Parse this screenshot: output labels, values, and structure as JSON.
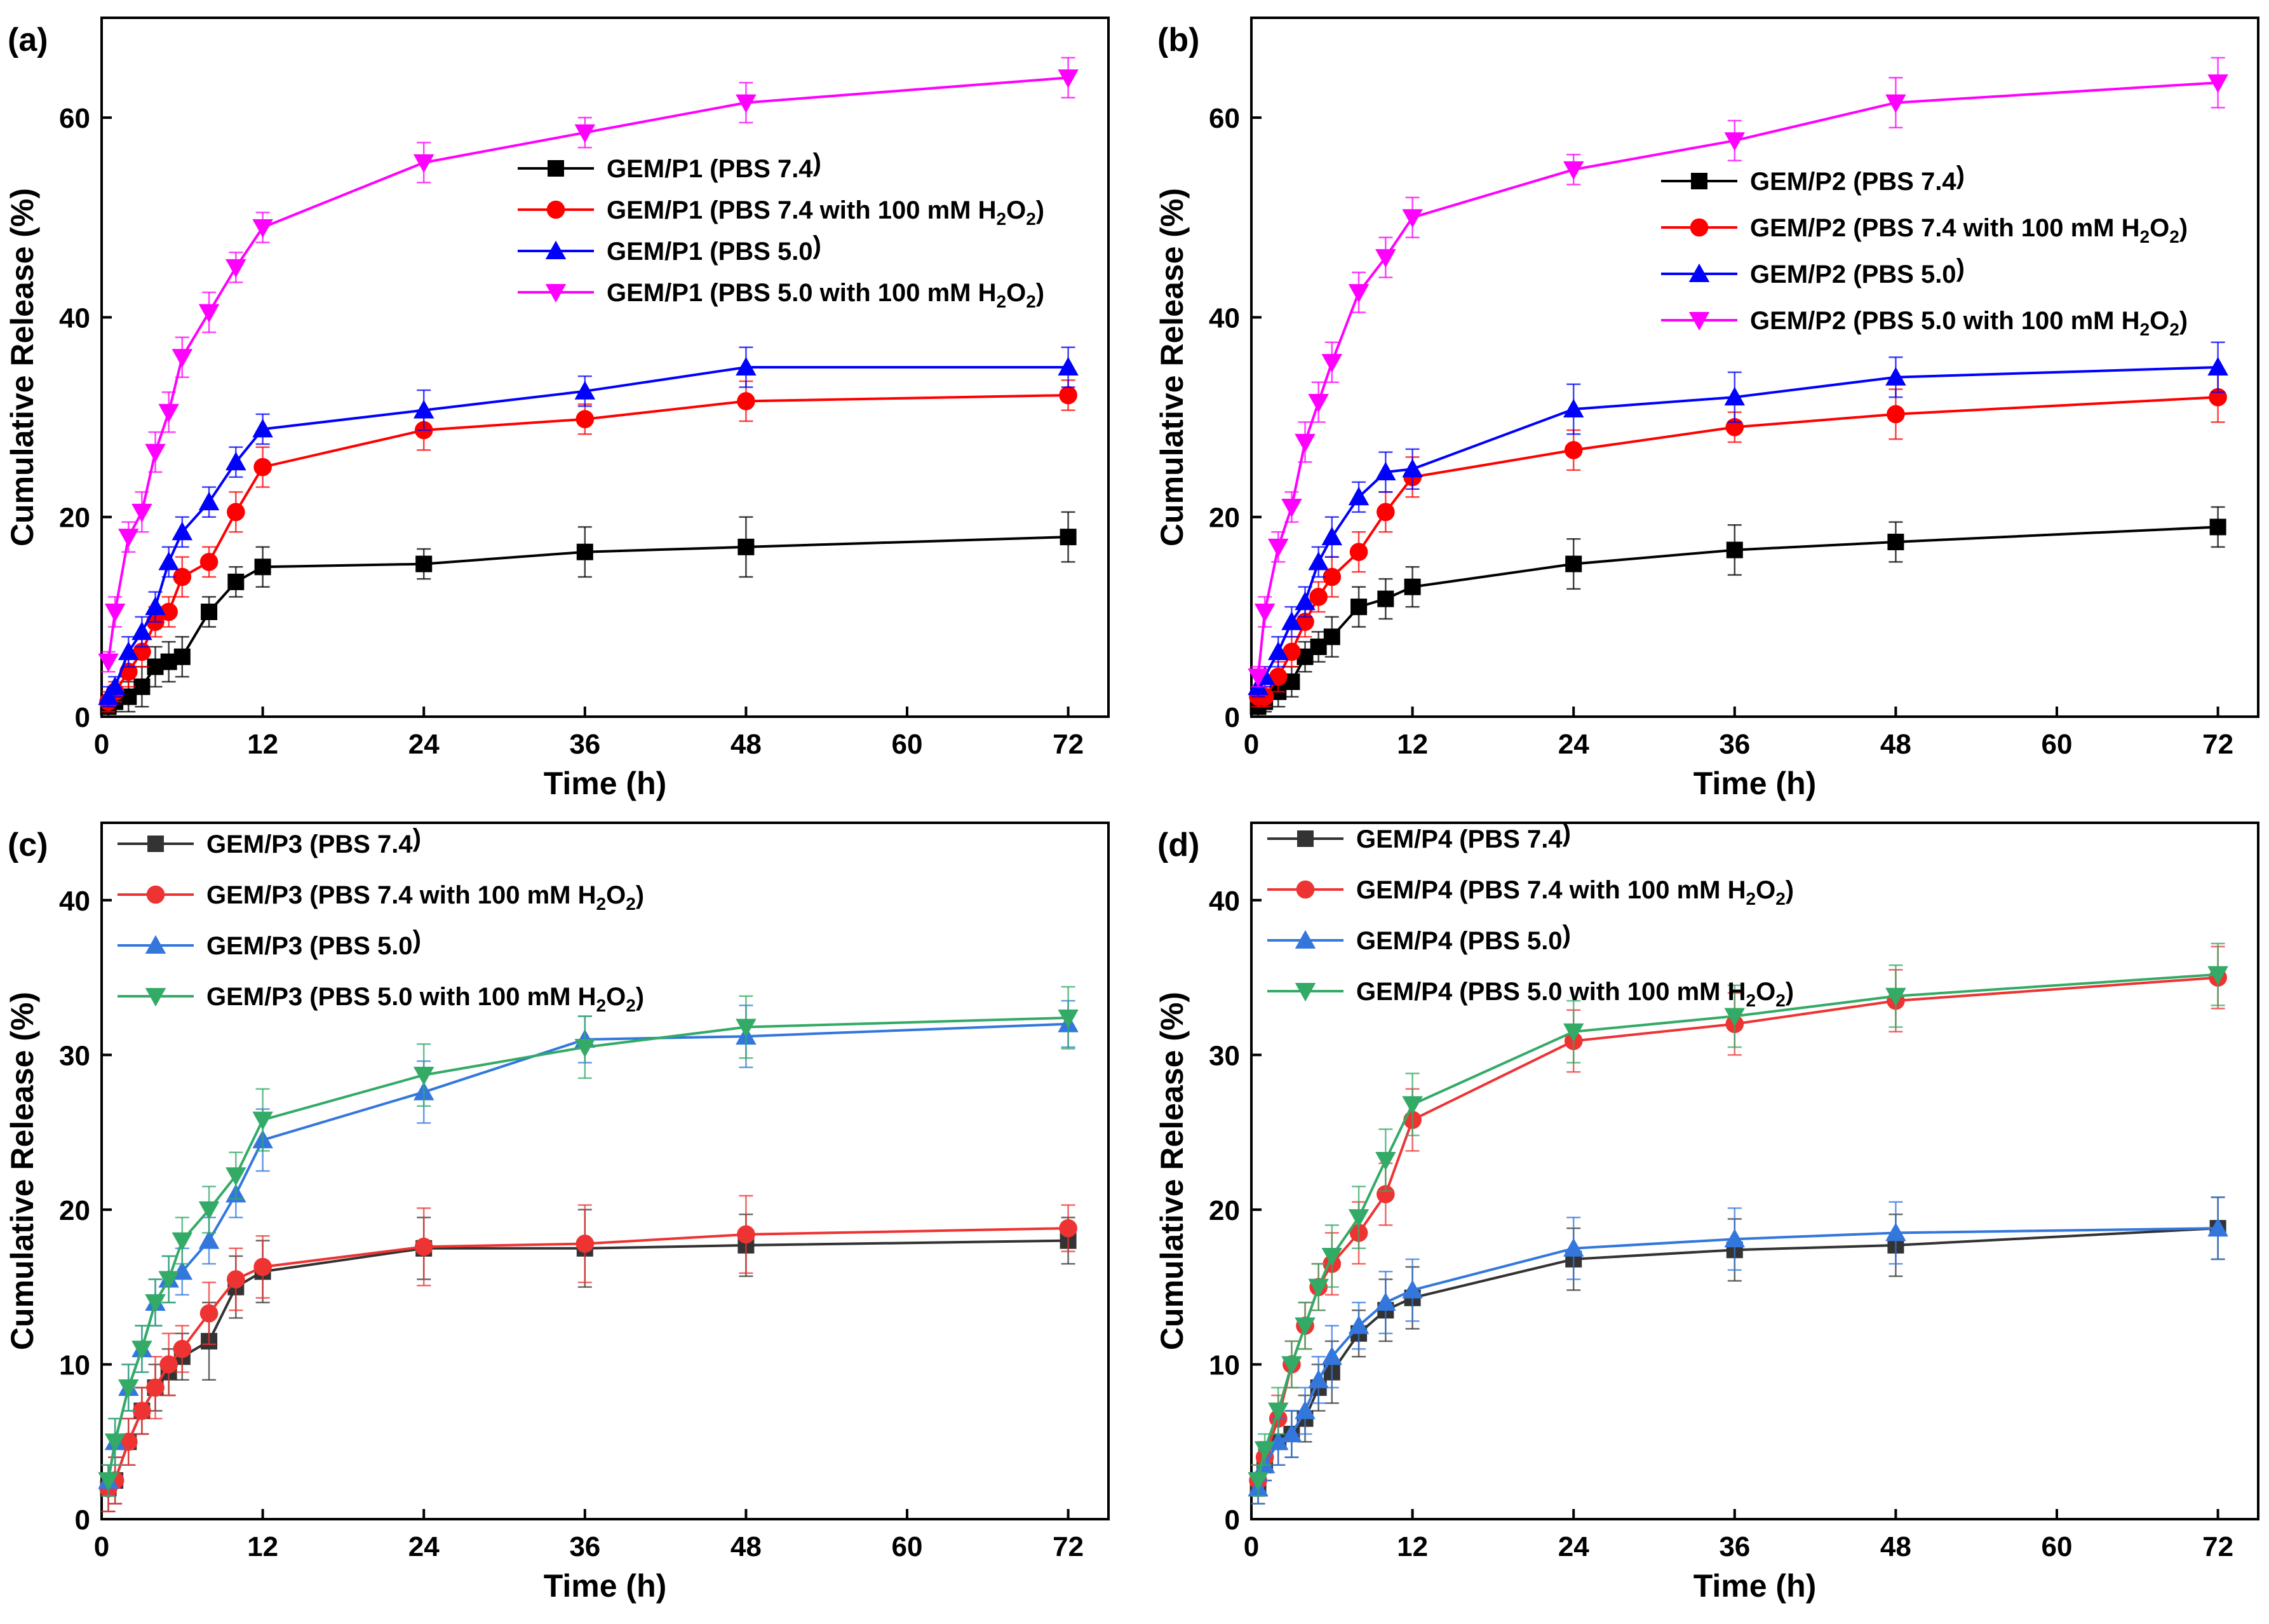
{
  "chart_data": [
    {
      "type": "line",
      "panel_label": "(a)",
      "xlabel": "Time (h)",
      "ylabel": "Cumulative Release (%)",
      "xlim": [
        0,
        75
      ],
      "ylim": [
        0,
        70
      ],
      "xticks": [
        0,
        12,
        24,
        36,
        48,
        60,
        72
      ],
      "yticks": [
        0,
        20,
        40,
        60
      ],
      "legend_position": "center-right",
      "x": [
        0.5,
        1,
        2,
        3,
        4,
        5,
        6,
        8,
        10,
        12,
        24,
        36,
        48,
        72
      ],
      "series": [
        {
          "name": "GEM/P1 (PBS 7.4)",
          "label_main": "GEM/P1 (PBS 7.4",
          "label_sub1": "",
          "label_mid": "",
          "label_sub2": "",
          "label_end": ")",
          "color": "#000000",
          "marker": "square",
          "values": [
            1.0,
            1.5,
            2.0,
            3.0,
            5.0,
            5.5,
            6.0,
            10.5,
            13.5,
            15.0,
            15.3,
            16.5,
            17.0,
            18.0
          ],
          "errors": [
            1.0,
            1.0,
            1.5,
            2.0,
            2.0,
            2.0,
            2.0,
            1.5,
            1.5,
            2.0,
            1.5,
            2.5,
            3.0,
            2.5
          ]
        },
        {
          "name": "GEM/P1 (PBS 7.4 with 100 mM H2O2)",
          "label_main": "GEM/P1 (PBS 7.4 with 100 mM H",
          "label_sub1": "2",
          "label_mid": "O",
          "label_sub2": "2",
          "label_end": ")",
          "color": "#ff0000",
          "marker": "circle",
          "values": [
            1.5,
            2.5,
            4.5,
            6.5,
            9.5,
            10.5,
            14.0,
            15.5,
            20.5,
            25.0,
            28.7,
            29.8,
            31.6,
            32.2
          ],
          "errors": [
            1.0,
            1.0,
            1.5,
            1.5,
            1.5,
            1.5,
            2.0,
            1.5,
            2.0,
            2.0,
            2.0,
            1.5,
            2.0,
            1.5
          ]
        },
        {
          "name": "GEM/P1 (PBS 5.0)",
          "label_main": "GEM/P1 (PBS 5.0",
          "label_sub1": "",
          "label_mid": "",
          "label_sub2": "",
          "label_end": ")",
          "color": "#0000ff",
          "marker": "triangle-up",
          "values": [
            2.0,
            3.0,
            6.5,
            8.5,
            11.0,
            15.5,
            18.5,
            21.5,
            25.5,
            28.8,
            30.7,
            32.6,
            35.0,
            35.0
          ],
          "errors": [
            1.0,
            1.0,
            1.5,
            1.5,
            1.5,
            1.5,
            1.5,
            1.5,
            1.5,
            1.5,
            2.0,
            1.5,
            2.0,
            2.0
          ]
        },
        {
          "name": "GEM/P1 (PBS 5.0 with 100 mM H2O2)",
          "label_main": "GEM/P1 (PBS 5.0 with 100 mM H",
          "label_sub1": "2",
          "label_mid": "O",
          "label_sub2": "2",
          "label_end": ")",
          "color": "#ff00ff",
          "marker": "triangle-down",
          "values": [
            5.5,
            10.5,
            18.0,
            20.5,
            26.5,
            30.5,
            36.0,
            40.5,
            45.0,
            49.0,
            55.5,
            58.5,
            61.5,
            64.0
          ],
          "errors": [
            1.0,
            1.5,
            1.5,
            2.0,
            2.0,
            2.0,
            2.0,
            2.0,
            1.5,
            1.5,
            2.0,
            1.5,
            2.0,
            2.0
          ]
        }
      ]
    },
    {
      "type": "line",
      "panel_label": "(b)",
      "xlabel": "Time (h)",
      "ylabel": "Cumulative Release (%)",
      "xlim": [
        0,
        75
      ],
      "ylim": [
        0,
        70
      ],
      "xticks": [
        0,
        12,
        24,
        36,
        48,
        60,
        72
      ],
      "yticks": [
        0,
        20,
        40,
        60
      ],
      "legend_position": "center-right",
      "x": [
        0.5,
        1,
        2,
        3,
        4,
        5,
        6,
        8,
        10,
        12,
        24,
        36,
        48,
        72
      ],
      "series": [
        {
          "name": "GEM/P2 (PBS 7.4)",
          "label_main": "GEM/P2 (PBS 7.4",
          "label_sub1": "",
          "label_mid": "",
          "label_sub2": "",
          "label_end": ")",
          "color": "#000000",
          "marker": "square",
          "values": [
            1.0,
            1.5,
            2.5,
            3.5,
            6.0,
            7.0,
            8.0,
            11.0,
            11.8,
            13.0,
            15.3,
            16.7,
            17.5,
            19.0
          ],
          "errors": [
            1.0,
            1.0,
            1.5,
            1.5,
            1.5,
            1.5,
            2.0,
            2.0,
            2.0,
            2.0,
            2.5,
            2.5,
            2.0,
            2.0
          ]
        },
        {
          "name": "GEM/P2 (PBS 7.4 with 100 mM H2O2)",
          "label_main": "GEM/P2 (PBS 7.4 with 100 mM H",
          "label_sub1": "2",
          "label_mid": "O",
          "label_sub2": "2",
          "label_end": ")",
          "color": "#ff0000",
          "marker": "circle",
          "values": [
            2.0,
            2.0,
            4.0,
            6.5,
            9.5,
            12.0,
            14.0,
            16.5,
            20.5,
            24.0,
            26.7,
            29.0,
            30.3,
            32.0
          ],
          "errors": [
            1.0,
            1.0,
            1.5,
            1.5,
            1.5,
            1.5,
            2.0,
            2.0,
            2.0,
            2.0,
            2.0,
            1.5,
            2.5,
            2.5
          ]
        },
        {
          "name": "GEM/P2 (PBS 5.0)",
          "label_main": "GEM/P2 (PBS 5.0",
          "label_sub1": "",
          "label_mid": "",
          "label_sub2": "",
          "label_end": ")",
          "color": "#0000ff",
          "marker": "triangle-up",
          "values": [
            3.0,
            4.0,
            6.5,
            9.5,
            11.5,
            15.5,
            18.0,
            22.0,
            24.5,
            24.8,
            30.8,
            32.0,
            34.0,
            35.0
          ],
          "errors": [
            1.0,
            1.0,
            1.5,
            1.5,
            1.5,
            1.5,
            2.0,
            1.5,
            2.0,
            2.0,
            2.5,
            2.5,
            2.0,
            2.5
          ]
        },
        {
          "name": "GEM/P2 (PBS 5.0 with 100 mM H2O2)",
          "label_main": "GEM/P2 (PBS 5.0 with 100 mM H",
          "label_sub1": "2",
          "label_mid": "O",
          "label_sub2": "2",
          "label_end": ")",
          "color": "#ff00ff",
          "marker": "triangle-down",
          "values": [
            4.0,
            10.5,
            17.0,
            21.0,
            27.5,
            31.5,
            35.5,
            42.5,
            46.0,
            50.0,
            54.8,
            57.7,
            61.5,
            63.5
          ],
          "errors": [
            1.0,
            1.5,
            1.5,
            1.5,
            2.0,
            2.0,
            2.0,
            2.0,
            2.0,
            2.0,
            1.5,
            2.0,
            2.5,
            2.5
          ]
        }
      ]
    },
    {
      "type": "line",
      "panel_label": "(c)",
      "xlabel": "Time (h)",
      "ylabel": "Cumulative Release (%)",
      "xlim": [
        0,
        75
      ],
      "ylim": [
        0,
        45
      ],
      "xticks": [
        0,
        12,
        24,
        36,
        48,
        60,
        72
      ],
      "yticks": [
        0,
        10,
        20,
        30,
        40
      ],
      "legend_position": "top-left",
      "x": [
        0.5,
        1,
        2,
        3,
        4,
        5,
        6,
        8,
        10,
        12,
        24,
        36,
        48,
        72
      ],
      "series": [
        {
          "name": "GEM/P3 (PBS 7.4)",
          "label_main": "GEM/P3 (PBS 7.4",
          "label_sub1": "",
          "label_mid": "",
          "label_sub2": "",
          "label_end": ")",
          "color": "#333333",
          "marker": "square",
          "values": [
            2.0,
            2.5,
            5.0,
            7.0,
            8.5,
            9.5,
            10.5,
            11.5,
            15.0,
            16.0,
            17.5,
            17.5,
            17.7,
            18.0
          ],
          "errors": [
            1.5,
            1.5,
            1.5,
            1.5,
            1.5,
            1.5,
            1.5,
            2.5,
            2.0,
            2.0,
            2.0,
            2.5,
            2.0,
            1.5
          ]
        },
        {
          "name": "GEM/P3 (PBS 7.4 with 100 mM H2O2)",
          "label_main": "GEM/P3 (PBS 7.4 with 100 mM H",
          "label_sub1": "2",
          "label_mid": "O",
          "label_sub2": "2",
          "label_end": ")",
          "color": "#ee3333",
          "marker": "circle",
          "values": [
            2.0,
            2.5,
            5.0,
            7.0,
            8.5,
            10.0,
            11.0,
            13.3,
            15.5,
            16.3,
            17.6,
            17.8,
            18.4,
            18.8
          ],
          "errors": [
            1.5,
            1.5,
            1.5,
            1.5,
            2.0,
            2.0,
            1.5,
            2.0,
            2.0,
            2.0,
            2.5,
            2.5,
            2.5,
            1.5
          ]
        },
        {
          "name": "GEM/P3 (PBS 5.0)",
          "label_main": "GEM/P3 (PBS 5.0",
          "label_sub1": "",
          "label_mid": "",
          "label_sub2": "",
          "label_end": ")",
          "color": "#3377dd",
          "marker": "triangle-up",
          "values": [
            2.5,
            5.0,
            8.5,
            11.0,
            14.0,
            15.5,
            16.0,
            18.0,
            21.0,
            24.5,
            27.6,
            31.0,
            31.2,
            32.0
          ],
          "errors": [
            1.0,
            1.5,
            1.5,
            1.5,
            1.5,
            1.5,
            1.5,
            1.5,
            1.5,
            2.0,
            2.0,
            1.5,
            2.0,
            1.5
          ]
        },
        {
          "name": "GEM/P3 (PBS 5.0 with 100 mM H2O2)",
          "label_main": "GEM/P3 (PBS 5.0 with 100 mM H",
          "label_sub1": "2",
          "label_mid": "O",
          "label_sub2": "2",
          "label_end": ")",
          "color": "#33aa66",
          "marker": "triangle-down",
          "values": [
            2.5,
            5.0,
            8.5,
            11.0,
            14.0,
            15.5,
            18.0,
            20.0,
            22.2,
            25.8,
            28.7,
            30.5,
            31.8,
            32.4
          ],
          "errors": [
            1.0,
            1.5,
            1.5,
            1.5,
            1.5,
            1.5,
            1.5,
            1.5,
            1.5,
            2.0,
            2.0,
            2.0,
            2.0,
            2.0
          ]
        }
      ]
    },
    {
      "type": "line",
      "panel_label": "(d)",
      "xlabel": "Time (h)",
      "ylabel": "Cumulative Release (%)",
      "xlim": [
        0,
        75
      ],
      "ylim": [
        0,
        45
      ],
      "xticks": [
        0,
        12,
        24,
        36,
        48,
        60,
        72
      ],
      "yticks": [
        0,
        10,
        20,
        30,
        40
      ],
      "legend_position": "top-left",
      "x": [
        0.5,
        1,
        2,
        3,
        4,
        5,
        6,
        8,
        10,
        12,
        24,
        36,
        48,
        72
      ],
      "series": [
        {
          "name": "GEM/P4 (PBS 7.4)",
          "label_main": "GEM/P4 (PBS 7.4",
          "label_sub1": "",
          "label_mid": "",
          "label_sub2": "",
          "label_end": ")",
          "color": "#333333",
          "marker": "square",
          "values": [
            2.0,
            3.5,
            5.0,
            5.5,
            6.5,
            8.5,
            9.5,
            12.0,
            13.5,
            14.3,
            16.8,
            17.4,
            17.7,
            18.8
          ],
          "errors": [
            1.0,
            1.0,
            1.5,
            1.5,
            1.5,
            1.5,
            2.0,
            1.5,
            2.0,
            2.0,
            2.0,
            2.0,
            2.0,
            2.0
          ]
        },
        {
          "name": "GEM/P4 (PBS 7.4 with 100 mM H2O2)",
          "label_main": "GEM/P4 (PBS 7.4 with 100 mM H",
          "label_sub1": "2",
          "label_mid": "O",
          "label_sub2": "2",
          "label_end": ")",
          "color": "#ee3333",
          "marker": "circle",
          "values": [
            2.5,
            4.0,
            6.5,
            10.0,
            12.5,
            15.0,
            16.5,
            18.5,
            21.0,
            25.8,
            30.9,
            32.0,
            33.5,
            35.0
          ],
          "errors": [
            1.0,
            1.0,
            1.5,
            1.5,
            1.5,
            1.5,
            2.0,
            2.0,
            2.0,
            2.0,
            2.0,
            2.0,
            2.0,
            2.0
          ]
        },
        {
          "name": "GEM/P4 (PBS 5.0)",
          "label_main": "GEM/P4 (PBS 5.0",
          "label_sub1": "",
          "label_mid": "",
          "label_sub2": "",
          "label_end": ")",
          "color": "#3377dd",
          "marker": "triangle-up",
          "values": [
            2.0,
            3.5,
            5.0,
            5.5,
            7.0,
            9.0,
            10.5,
            12.5,
            14.0,
            14.8,
            17.5,
            18.1,
            18.5,
            18.8
          ],
          "errors": [
            1.0,
            1.0,
            1.5,
            1.5,
            1.5,
            1.5,
            2.0,
            1.5,
            2.0,
            2.0,
            2.0,
            2.0,
            2.0,
            2.0
          ]
        },
        {
          "name": "GEM/P4 (PBS 5.0 with 100 mM H2O2)",
          "label_main": "GEM/P4 (PBS 5.0 with 100 mM H",
          "label_sub1": "2",
          "label_mid": "O",
          "label_sub2": "2",
          "label_end": ")",
          "color": "#33aa66",
          "marker": "triangle-down",
          "values": [
            2.5,
            4.5,
            7.0,
            10.0,
            12.5,
            15.0,
            17.0,
            19.5,
            23.2,
            26.8,
            31.5,
            32.5,
            33.8,
            35.2
          ],
          "errors": [
            1.0,
            1.0,
            1.5,
            1.5,
            1.5,
            1.5,
            2.0,
            2.0,
            2.0,
            2.0,
            2.0,
            2.0,
            2.0,
            2.0
          ]
        }
      ]
    }
  ]
}
